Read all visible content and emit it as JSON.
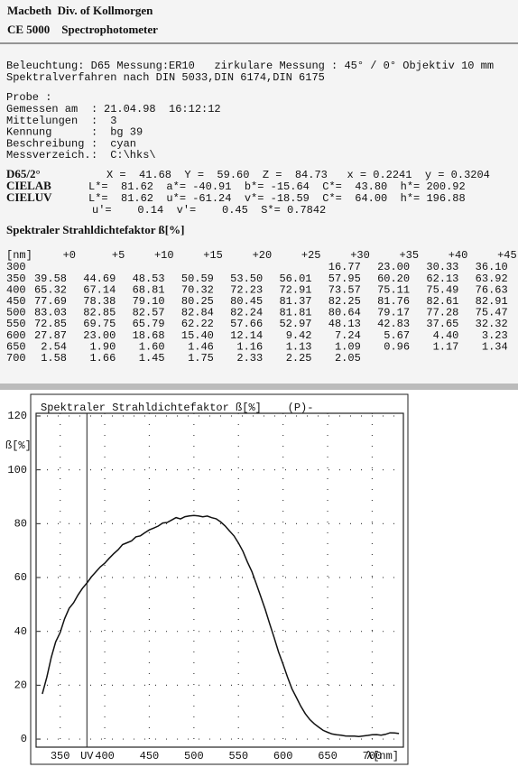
{
  "header": {
    "company": "Macbeth  Div. of Kollmorgen",
    "model": "CE 5000    Spectrophotometer"
  },
  "measurement": [
    "Beleuchtung: D65 Messung:ER10   zirkulare Messung : 45° / 0° Objektiv 10 mm",
    "Spektralverfahren nach DIN 5033,DIN 6174,DIN 6175"
  ],
  "sample": {
    "title": "Probe :",
    "fields": [
      {
        "label": "Gemessen am",
        "value": "21.04.98  16:12:12"
      },
      {
        "label": "Mittelungen",
        "value": " 3"
      },
      {
        "label": "Kennung",
        "value": " bg 39"
      },
      {
        "label": "Beschreibung",
        "value": " cyan"
      },
      {
        "label": "Messverzeich.",
        "value": " C:\\hks\\"
      }
    ]
  },
  "colorimetry": {
    "illuminant": "D65/2°",
    "xyz": "X =  41.68  Y =  59.60  Z =  84.73   x = 0.2241  y = 0.3204",
    "cielab_label": "CIELAB",
    "cielab": "L*=  81.62  a*= -40.91  b*= -15.64  C*=  43.80  h*= 200.92",
    "cieluv_label": "CIELUV",
    "cieluv": "L*=  81.62  u*= -61.24  v*= -18.59  C*=  64.00  h*= 196.88",
    "uv": "u'=    0.14  v'=    0.45  S*= 0.7842"
  },
  "table": {
    "title": "Spektraler Strahldichtefaktor ß[%]",
    "unit_header": "[nm]",
    "columns": [
      "+0",
      "+5",
      "+10",
      "+15",
      "+20",
      "+25",
      "+30",
      "+35",
      "+40",
      "+45"
    ],
    "rows": [
      {
        "label": "300",
        "cells": [
          null,
          null,
          null,
          null,
          null,
          null,
          "16.77",
          "23.00",
          "30.33",
          "36.10"
        ]
      },
      {
        "label": "350",
        "cells": [
          "39.58",
          "44.69",
          "48.53",
          "50.59",
          "53.50",
          "56.01",
          "57.95",
          "60.20",
          "62.13",
          "63.92"
        ]
      },
      {
        "label": "400",
        "cells": [
          "65.32",
          "67.14",
          "68.81",
          "70.32",
          "72.23",
          "72.91",
          "73.57",
          "75.11",
          "75.49",
          "76.63"
        ]
      },
      {
        "label": "450",
        "cells": [
          "77.69",
          "78.38",
          "79.10",
          "80.25",
          "80.45",
          "81.37",
          "82.25",
          "81.76",
          "82.61",
          "82.91"
        ]
      },
      {
        "label": "500",
        "cells": [
          "83.03",
          "82.85",
          "82.57",
          "82.84",
          "82.24",
          "81.81",
          "80.64",
          "79.17",
          "77.28",
          "75.47"
        ]
      },
      {
        "label": "550",
        "cells": [
          "72.85",
          "69.75",
          "65.79",
          "62.22",
          "57.66",
          "52.97",
          "48.13",
          "42.83",
          "37.65",
          "32.32"
        ]
      },
      {
        "label": "600",
        "cells": [
          "27.87",
          "23.00",
          "18.68",
          "15.40",
          "12.14",
          "9.42",
          "7.24",
          "5.67",
          "4.40",
          "3.23"
        ]
      },
      {
        "label": "650",
        "cells": [
          "2.54",
          "1.90",
          "1.60",
          "1.46",
          "1.16",
          "1.13",
          "1.09",
          "0.96",
          "1.17",
          "1.34"
        ]
      },
      {
        "label": "700",
        "cells": [
          "1.58",
          "1.66",
          "1.45",
          "1.75",
          "2.33",
          "2.25",
          "2.05",
          null,
          null,
          null
        ]
      }
    ]
  },
  "chart_data": {
    "type": "line",
    "title": "Spektraler Strahldichtefaktor ß[%]    (P)-",
    "y_label": "ß[%]",
    "x_label": "λ[nm]",
    "color": "#111111",
    "grid": true,
    "x": [
      330,
      335,
      340,
      345,
      350,
      355,
      360,
      365,
      370,
      375,
      380,
      385,
      390,
      395,
      400,
      405,
      410,
      415,
      420,
      425,
      430,
      435,
      440,
      445,
      450,
      455,
      460,
      465,
      470,
      475,
      480,
      485,
      490,
      495,
      500,
      505,
      510,
      515,
      520,
      525,
      530,
      535,
      540,
      545,
      550,
      555,
      560,
      565,
      570,
      575,
      580,
      585,
      590,
      595,
      600,
      605,
      610,
      615,
      620,
      625,
      630,
      635,
      640,
      645,
      650,
      655,
      660,
      665,
      670,
      675,
      680,
      685,
      690,
      695,
      700,
      705,
      710,
      715,
      720,
      725,
      730
    ],
    "values": [
      16.77,
      23,
      30.33,
      36.1,
      39.58,
      44.69,
      48.53,
      50.59,
      53.5,
      56.01,
      57.95,
      60.2,
      62.13,
      63.92,
      65.32,
      67.14,
      68.81,
      70.32,
      72.23,
      72.91,
      73.57,
      75.11,
      75.49,
      76.63,
      77.69,
      78.38,
      79.1,
      80.25,
      80.45,
      81.37,
      82.25,
      81.76,
      82.61,
      82.91,
      83.03,
      82.85,
      82.57,
      82.84,
      82.24,
      81.81,
      80.64,
      79.17,
      77.28,
      75.47,
      72.85,
      69.75,
      65.79,
      62.22,
      57.66,
      52.97,
      48.13,
      42.83,
      37.65,
      32.32,
      27.87,
      23,
      18.68,
      15.4,
      12.14,
      9.42,
      7.24,
      5.67,
      4.4,
      3.23,
      2.54,
      1.9,
      1.6,
      1.46,
      1.16,
      1.13,
      1.09,
      0.96,
      1.17,
      1.34,
      1.58,
      1.66,
      1.45,
      1.75,
      2.33,
      2.25,
      2.05
    ],
    "xlim": [
      323,
      735
    ],
    "ylim": [
      -3,
      121
    ],
    "xticks": [
      350,
      {
        "value": 380,
        "label": "UV"
      },
      400,
      450,
      500,
      550,
      600,
      650,
      700
    ],
    "yticks": [
      0,
      20,
      40,
      60,
      80,
      100,
      120
    ]
  }
}
